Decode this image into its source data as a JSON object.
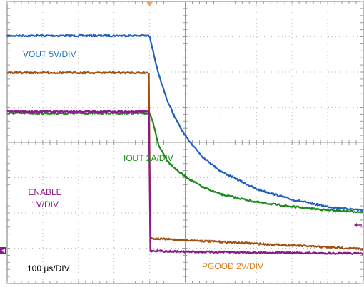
{
  "chart_data": {
    "type": "line",
    "title": "",
    "xlabel": "",
    "ylabel": "",
    "grid": true,
    "x_divisions": 10,
    "y_divisions": 8,
    "time_per_div_label": "100 μs/DIV",
    "time_per_div_us": 100,
    "x_unit": "μs",
    "xlim": [
      -400,
      600
    ],
    "series": [
      {
        "name": "VOUT 5V/DIV",
        "color": "#1f5fbf",
        "label_color": "#1f6fc0",
        "label_lines": [
          "VOUT 5V/DIV"
        ],
        "x": [
          -400,
          0,
          10,
          25,
          50,
          75,
          100,
          150,
          200,
          300,
          400,
          500,
          600
        ],
        "y": [
          6.1,
          6.1,
          5.65,
          5.0,
          4.25,
          3.7,
          3.25,
          2.65,
          2.25,
          1.75,
          1.45,
          1.25,
          1.15
        ]
      },
      {
        "name": "IOUT 2A/DIV",
        "color": "#1a8a1a",
        "label_color": "#1a8a1a",
        "label_lines": [
          "IOUT 2A/DIV"
        ],
        "x": [
          -400,
          0,
          10,
          25,
          50,
          75,
          100,
          150,
          200,
          300,
          400,
          500,
          600
        ],
        "y": [
          3.9,
          3.9,
          3.6,
          3.0,
          2.55,
          2.3,
          2.1,
          1.8,
          1.6,
          1.38,
          1.25,
          1.15,
          1.1
        ]
      },
      {
        "name": "PGOOD 2V/DIV",
        "color": "#a0500f",
        "label_color": "#e07b1a",
        "label_lines": [
          "PGOOD 2V/DIV"
        ],
        "x": [
          -400,
          -1,
          1,
          100,
          200,
          400,
          600
        ],
        "y": [
          5.05,
          5.05,
          0.35,
          0.3,
          0.25,
          0.15,
          0.05
        ]
      },
      {
        "name": "ENABLE 1V/DIV",
        "color": "#8a1a8a",
        "label_color": "#8a1a8a",
        "label_lines": [
          "ENABLE",
          "1V/DIV"
        ],
        "x": [
          -400,
          -1,
          1,
          100,
          300,
          600
        ],
        "y": [
          3.95,
          3.95,
          0.0,
          -0.03,
          -0.05,
          -0.08
        ]
      }
    ],
    "trigger_marker_color": "#f0a06a",
    "ground_marker_color": "#8a1a8a"
  }
}
